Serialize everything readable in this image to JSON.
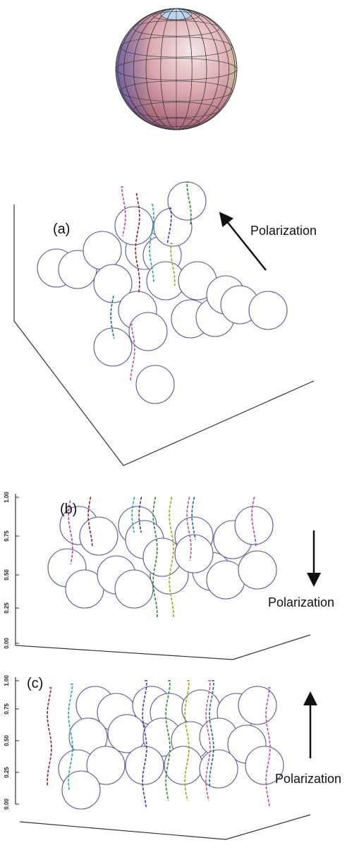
{
  "panels": [
    {
      "label": "(a)",
      "arrow_label": "Polarization"
    },
    {
      "label": "(b)",
      "arrow_label": "Polarization",
      "yticks": [
        "1.00",
        "0.75",
        "0.50",
        "0.25",
        "0.00"
      ]
    },
    {
      "label": "(c)",
      "arrow_label": "Polarization",
      "yticks": [
        "1.00",
        "0.75",
        "0.50",
        "0.25",
        "0.00"
      ]
    }
  ]
}
